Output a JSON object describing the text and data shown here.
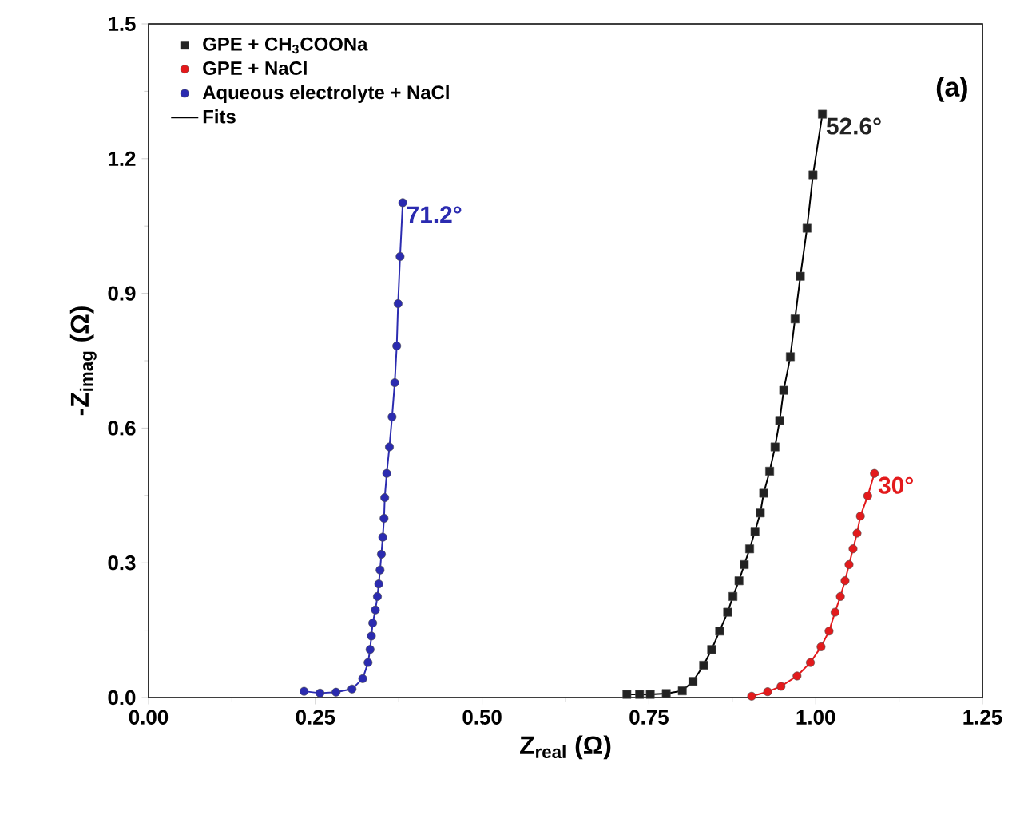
{
  "chart_data": {
    "type": "scatter",
    "xlabel": "Z$_{real}$ (Ω)",
    "ylabel": "-Z$_{imag}$ (Ω)",
    "xlim": [
      0,
      1.25
    ],
    "ylim": [
      0,
      1.5
    ],
    "xticks": [
      {
        "value": 0,
        "label": "0.00"
      },
      {
        "value": 0.25,
        "label": "0.25"
      },
      {
        "value": 0.5,
        "label": "0.50"
      },
      {
        "value": 0.75,
        "label": "0.75"
      },
      {
        "value": 1,
        "label": "1.00"
      },
      {
        "value": 1.25,
        "label": "1.25"
      }
    ],
    "yticks": [
      {
        "value": 0,
        "label": "0.0"
      },
      {
        "value": 0.3,
        "label": "0.3"
      },
      {
        "value": 0.6,
        "label": "0.6"
      },
      {
        "value": 0.9,
        "label": "0.9"
      },
      {
        "value": 1.2,
        "label": "1.2"
      },
      {
        "value": 1.5,
        "label": "1.5"
      }
    ],
    "legend": "top left",
    "series": [
      {
        "name": "GPE + CH$_{3}$COONa",
        "marker": "square",
        "color": "#222222",
        "x": [
          0.717,
          0.736,
          0.752,
          0.776,
          0.8,
          0.816,
          0.832,
          0.844,
          0.856,
          0.868,
          0.876,
          0.885,
          0.893,
          0.901,
          0.909,
          0.917,
          0.922,
          0.931,
          0.939,
          0.946,
          0.952,
          0.962,
          0.969,
          0.977,
          0.987,
          0.996,
          1.01
        ],
        "values": [
          0.007,
          0.007,
          0.007,
          0.009,
          0.015,
          0.036,
          0.072,
          0.107,
          0.148,
          0.19,
          0.225,
          0.26,
          0.296,
          0.331,
          0.37,
          0.411,
          0.455,
          0.504,
          0.558,
          0.617,
          0.684,
          0.759,
          0.843,
          0.938,
          1.045,
          1.164,
          1.299
        ]
      },
      {
        "name": "GPE + NaCl",
        "marker": "circle",
        "color": "#e31a1c",
        "x": [
          0.904,
          0.928,
          0.948,
          0.972,
          0.992,
          1.008,
          1.02,
          1.029,
          1.037,
          1.044,
          1.05,
          1.056,
          1.062,
          1.067,
          1.078,
          1.088
        ],
        "values": [
          0.003,
          0.013,
          0.025,
          0.048,
          0.078,
          0.113,
          0.148,
          0.19,
          0.225,
          0.26,
          0.296,
          0.331,
          0.366,
          0.404,
          0.449,
          0.499
        ]
      },
      {
        "name": "Aqueous electrolyte + NaCl",
        "marker": "circle",
        "color": "#2b2bb0",
        "x": [
          0.233,
          0.257,
          0.281,
          0.305,
          0.321,
          0.329,
          0.332,
          0.334,
          0.336,
          0.34,
          0.343,
          0.345,
          0.347,
          0.349,
          0.351,
          0.353,
          0.354,
          0.357,
          0.361,
          0.365,
          0.369,
          0.372,
          0.374,
          0.377,
          0.381
        ],
        "values": [
          0.014,
          0.01,
          0.012,
          0.019,
          0.042,
          0.078,
          0.107,
          0.137,
          0.166,
          0.195,
          0.225,
          0.253,
          0.284,
          0.319,
          0.357,
          0.399,
          0.445,
          0.499,
          0.558,
          0.625,
          0.701,
          0.783,
          0.877,
          0.982,
          1.102
        ]
      },
      {
        "name": "Fits",
        "type": "line",
        "color": "#000000",
        "x": [
          0.717,
          0.736,
          0.752,
          0.776,
          0.8,
          0.816,
          0.832,
          0.844,
          0.856,
          0.868,
          0.876,
          0.885,
          0.893,
          0.901,
          0.909,
          0.917,
          0.922,
          0.931,
          0.939,
          0.946,
          0.952,
          0.962,
          0.969,
          0.977,
          0.987,
          0.996,
          1.01
        ],
        "values": [
          0.007,
          0.007,
          0.007,
          0.009,
          0.015,
          0.036,
          0.072,
          0.107,
          0.148,
          0.19,
          0.225,
          0.26,
          0.296,
          0.331,
          0.37,
          0.411,
          0.455,
          0.504,
          0.558,
          0.617,
          0.684,
          0.759,
          0.843,
          0.938,
          1.045,
          1.164,
          1.299
        ]
      },
      {
        "type": "line",
        "color": "#e31a1c",
        "x": [
          0.904,
          0.928,
          0.948,
          0.972,
          0.992,
          1.008,
          1.02,
          1.029,
          1.037,
          1.044,
          1.05,
          1.056,
          1.062,
          1.067,
          1.078,
          1.088
        ],
        "values": [
          0.003,
          0.013,
          0.025,
          0.048,
          0.078,
          0.113,
          0.148,
          0.19,
          0.225,
          0.26,
          0.296,
          0.331,
          0.366,
          0.404,
          0.449,
          0.499
        ]
      },
      {
        "type": "line",
        "color": "#2b2bb0",
        "x": [
          0.233,
          0.257,
          0.281,
          0.305,
          0.321,
          0.329,
          0.332,
          0.334,
          0.336,
          0.34,
          0.343,
          0.345,
          0.347,
          0.349,
          0.351,
          0.353,
          0.354,
          0.357,
          0.361,
          0.365,
          0.369,
          0.372,
          0.374,
          0.377,
          0.381
        ],
        "values": [
          0.014,
          0.01,
          0.012,
          0.019,
          0.042,
          0.078,
          0.107,
          0.137,
          0.166,
          0.195,
          0.225,
          0.253,
          0.284,
          0.319,
          0.357,
          0.399,
          0.445,
          0.499,
          0.558,
          0.625,
          0.701,
          0.783,
          0.877,
          0.982,
          1.102
        ]
      }
    ],
    "annotations": [
      {
        "text": "52.6°",
        "x": 1.01,
        "y": 1.299
      },
      {
        "text": "30°",
        "x": 1.088,
        "y": 0.499
      },
      {
        "text": "71.2°",
        "x": 0.381,
        "y": 1.102
      },
      "(a)"
    ]
  }
}
